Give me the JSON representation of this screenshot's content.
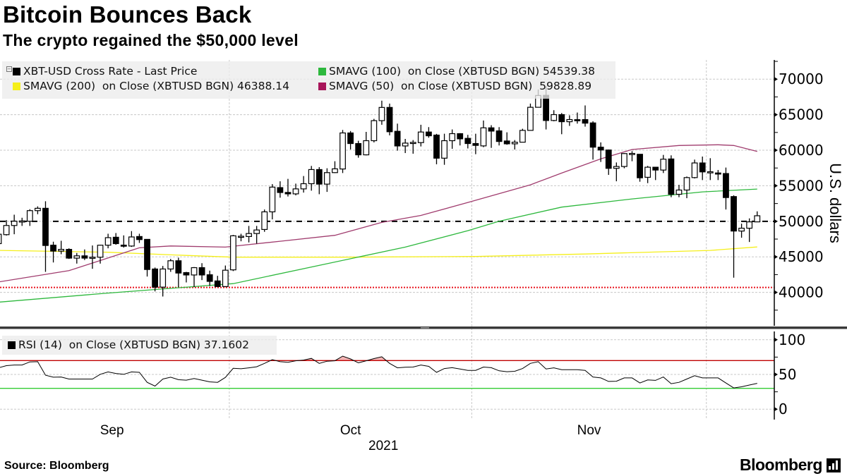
{
  "header": {
    "title": "Bitcoin Bounces Back",
    "subtitle": "The crypto regained the $50,000 level"
  },
  "legend": {
    "items": [
      {
        "label": "XBT-USD Cross Rate - Last Price",
        "color": "#000000"
      },
      {
        "label": "SMAVG (100)  on Close (XBTUSD BGN) 54539.38",
        "color": "#2db83d"
      },
      {
        "label": "SMAVG (200)  on Close (XBTUSD BGN) 46388.14",
        "color": "#f5ef1a"
      },
      {
        "label": "SMAVG (50)  on Close (XBTUSD BGN)  59828.89",
        "color": "#a8155a"
      }
    ]
  },
  "rsi_legend": {
    "label": "RSI (14)  on Close (XBTUSD BGN) 37.1602",
    "color": "#000000"
  },
  "footer": {
    "source": "Source: Bloomberg",
    "logo_text": "Bloomberg"
  },
  "chart_data": [
    {
      "type": "candlestick",
      "title": "",
      "xlabel": "2021",
      "ylabel": "U.S. dollars",
      "ylim": [
        35300,
        72700
      ],
      "y_ticks": [
        40000,
        45000,
        50000,
        55000,
        60000,
        65000,
        70000
      ],
      "x_ticks": [
        "Sep",
        "Oct",
        "Nov"
      ],
      "grid": true,
      "legend_position": "top-left",
      "candle_fields": [
        "date",
        "open",
        "high",
        "low",
        "close"
      ],
      "candles": [
        [
          "2021-09-01",
          46860,
          49020,
          46370,
          48180
        ],
        [
          "2021-09-02",
          48120,
          50170,
          48000,
          49410
        ],
        [
          "2021-09-03",
          49410,
          50930,
          48180,
          50010
        ],
        [
          "2021-09-04",
          50000,
          50500,
          49350,
          50050
        ],
        [
          "2021-09-05",
          50010,
          51700,
          49350,
          51500
        ],
        [
          "2021-09-06",
          51500,
          52100,
          51000,
          51830
        ],
        [
          "2021-09-07",
          51830,
          52820,
          42890,
          46600
        ],
        [
          "2021-09-08",
          46640,
          47130,
          44210,
          45810
        ],
        [
          "2021-09-09",
          45810,
          47260,
          45370,
          46050
        ],
        [
          "2021-09-10",
          46050,
          46200,
          44710,
          44820
        ],
        [
          "2021-09-11",
          44820,
          45540,
          44050,
          45140
        ],
        [
          "2021-09-12",
          45140,
          46040,
          44550,
          44820
        ],
        [
          "2021-09-13",
          44820,
          46600,
          43320,
          44950
        ],
        [
          "2021-09-14",
          44950,
          46700,
          44050,
          46640
        ],
        [
          "2021-09-15",
          46640,
          48250,
          46200,
          47700
        ],
        [
          "2021-09-16",
          47760,
          48350,
          46700,
          46860
        ],
        [
          "2021-09-17",
          46650,
          48020,
          46300,
          46500
        ],
        [
          "2021-09-18",
          46520,
          48620,
          46400,
          47800
        ],
        [
          "2021-09-19",
          47860,
          48250,
          46960,
          47430
        ],
        [
          "2021-09-20",
          47460,
          47500,
          42230,
          43220
        ],
        [
          "2021-09-21",
          43290,
          43500,
          40140,
          40740
        ],
        [
          "2021-09-22",
          40740,
          43720,
          39420,
          43290
        ],
        [
          "2021-09-23",
          43290,
          44710,
          42890,
          44450
        ],
        [
          "2021-09-24",
          44450,
          44880,
          40740,
          42720
        ],
        [
          "2021-09-25",
          42780,
          42890,
          41400,
          42450
        ],
        [
          "2021-09-26",
          42450,
          43560,
          40740,
          43480
        ],
        [
          "2021-09-27",
          43480,
          44110,
          41730,
          42450
        ],
        [
          "2021-09-28",
          42480,
          43060,
          40900,
          41550
        ],
        [
          "2021-09-29",
          41610,
          42330,
          40740,
          40820
        ],
        [
          "2021-09-30",
          40820,
          43780,
          40740,
          43120
        ],
        [
          "2021-10-01",
          43170,
          48080,
          43000,
          47960
        ],
        [
          "2021-10-02",
          47860,
          48250,
          47190,
          47900
        ],
        [
          "2021-10-03",
          47860,
          49350,
          47030,
          48280
        ],
        [
          "2021-10-04",
          48280,
          49350,
          46860,
          48780
        ],
        [
          "2021-10-05",
          48850,
          51660,
          48520,
          51330
        ],
        [
          "2021-10-06",
          51330,
          55230,
          50270,
          54810
        ],
        [
          "2021-10-07",
          54740,
          55630,
          53320,
          54050
        ],
        [
          "2021-10-08",
          54060,
          55970,
          53490,
          53860
        ],
        [
          "2021-10-09",
          53860,
          55300,
          53650,
          54560
        ],
        [
          "2021-10-10",
          54560,
          56370,
          54040,
          55290
        ],
        [
          "2021-10-11",
          55290,
          57790,
          54310,
          57280
        ],
        [
          "2021-10-12",
          57280,
          57620,
          53810,
          55230
        ],
        [
          "2021-10-13",
          55230,
          57460,
          54140,
          56850
        ],
        [
          "2021-10-14",
          56850,
          58450,
          56790,
          57380
        ],
        [
          "2021-10-15",
          57360,
          62850,
          56790,
          62430
        ],
        [
          "2021-10-16",
          62430,
          62700,
          60100,
          60940
        ],
        [
          "2021-10-17",
          60940,
          61330,
          58950,
          59350
        ],
        [
          "2021-10-18",
          59350,
          62580,
          59280,
          61340
        ],
        [
          "2021-10-19",
          61340,
          64410,
          61100,
          64160
        ],
        [
          "2021-10-20",
          64160,
          66970,
          63580,
          66020
        ],
        [
          "2021-10-21",
          66020,
          66560,
          62090,
          62600
        ],
        [
          "2021-10-22",
          62660,
          63740,
          59940,
          60600
        ],
        [
          "2021-10-23",
          60600,
          61590,
          59600,
          61000
        ],
        [
          "2021-10-24",
          61050,
          61430,
          59510,
          61100
        ],
        [
          "2021-10-25",
          61070,
          63580,
          60530,
          62560
        ],
        [
          "2021-10-26",
          62560,
          63250,
          61760,
          62030
        ],
        [
          "2021-10-27",
          62130,
          62300,
          58020,
          58880
        ],
        [
          "2021-10-28",
          58880,
          62320,
          57950,
          61340
        ],
        [
          "2021-10-29",
          61340,
          62920,
          60200,
          62330
        ],
        [
          "2021-10-30",
          62330,
          62400,
          60670,
          61600
        ],
        [
          "2021-10-31",
          61670,
          62160,
          60250,
          60940
        ],
        [
          "2021-11-01",
          60940,
          62320,
          59440,
          60680
        ],
        [
          "2021-11-02",
          60610,
          64180,
          60430,
          63150
        ],
        [
          "2021-11-03",
          63150,
          63520,
          60330,
          62690
        ],
        [
          "2021-11-04",
          62720,
          63250,
          60670,
          61230
        ],
        [
          "2021-11-05",
          61300,
          62520,
          60770,
          60900
        ],
        [
          "2021-11-06",
          60900,
          61430,
          60100,
          61130
        ],
        [
          "2021-11-07",
          61130,
          63020,
          61100,
          62790
        ],
        [
          "2021-11-08",
          62790,
          66560,
          62750,
          66040
        ],
        [
          "2021-11-09",
          66040,
          68540,
          66040,
          67700
        ],
        [
          "2021-11-10",
          67720,
          69040,
          62920,
          64180
        ],
        [
          "2021-11-11",
          64180,
          65630,
          64070,
          65010
        ],
        [
          "2021-11-12",
          65010,
          65230,
          62250,
          64010
        ],
        [
          "2021-11-13",
          64010,
          64910,
          63420,
          64310
        ],
        [
          "2021-11-14",
          64300,
          65300,
          63740,
          64280
        ],
        [
          "2021-11-15",
          64310,
          66300,
          63320,
          63810
        ],
        [
          "2021-11-16",
          63840,
          64070,
          58680,
          60430
        ],
        [
          "2021-11-17",
          60430,
          61100,
          58350,
          60030
        ],
        [
          "2021-11-18",
          60030,
          60100,
          56530,
          57450
        ],
        [
          "2021-11-19",
          57450,
          58280,
          55630,
          57710
        ],
        [
          "2021-11-20",
          57710,
          59600,
          57460,
          59530
        ],
        [
          "2021-11-21",
          59530,
          59870,
          58450,
          59550
        ],
        [
          "2021-11-22",
          59430,
          59440,
          55570,
          56120
        ],
        [
          "2021-11-23",
          56190,
          57790,
          55370,
          57610
        ],
        [
          "2021-11-24",
          57610,
          57620,
          55800,
          57210
        ],
        [
          "2021-11-25",
          57210,
          59340,
          56790,
          58740
        ],
        [
          "2021-11-26",
          58770,
          59280,
          53390,
          53800
        ],
        [
          "2021-11-27",
          53800,
          55130,
          53390,
          54400
        ],
        [
          "2021-11-28",
          54400,
          56300,
          53250,
          56150
        ],
        [
          "2021-11-29",
          56150,
          58680,
          56030,
          58210
        ],
        [
          "2021-11-30",
          58210,
          59110,
          55800,
          56950
        ],
        [
          "2021-12-01",
          56950,
          58880,
          55800,
          56970
        ],
        [
          "2021-12-02",
          56800,
          57220,
          55800,
          56780
        ],
        [
          "2021-12-03",
          56720,
          57560,
          51660,
          53340
        ],
        [
          "2021-12-04",
          53480,
          53650,
          42070,
          48630
        ],
        [
          "2021-12-05",
          48630,
          49670,
          47690,
          49030
        ],
        [
          "2021-12-06",
          49030,
          50410,
          47090,
          49920
        ],
        [
          "2021-12-07",
          49920,
          51400,
          49900,
          50780
        ]
      ],
      "series": [
        {
          "name": "SMAVG (200)",
          "color": "#f5ef1a",
          "points": [
            [
              "2021-09-01",
              45900
            ],
            [
              "2021-09-15",
              45650
            ],
            [
              "2021-09-25",
              45200
            ],
            [
              "2021-10-01",
              44950
            ],
            [
              "2021-10-15",
              44950
            ],
            [
              "2021-11-01",
              45050
            ],
            [
              "2021-11-15",
              45400
            ],
            [
              "2021-12-01",
              45900
            ],
            [
              "2021-12-07",
              46388.14
            ]
          ]
        },
        {
          "name": "SMAVG (100)",
          "color": "#2db83d",
          "points": [
            [
              "2021-09-01",
              38620
            ],
            [
              "2021-09-15",
              39900
            ],
            [
              "2021-10-01",
              41230
            ],
            [
              "2021-10-23",
              46370
            ],
            [
              "2021-10-31",
              48680
            ],
            [
              "2021-11-04",
              50010
            ],
            [
              "2021-11-12",
              52000
            ],
            [
              "2021-11-21",
              53150
            ],
            [
              "2021-11-30",
              54140
            ],
            [
              "2021-12-07",
              54539.38
            ]
          ]
        },
        {
          "name": "SMAVG (50)",
          "color": "#a03c6e",
          "points": [
            [
              "2021-09-01",
              41470
            ],
            [
              "2021-09-10",
              43060
            ],
            [
              "2021-09-19",
              46270
            ],
            [
              "2021-09-23",
              46530
            ],
            [
              "2021-09-30",
              46370
            ],
            [
              "2021-10-07",
              47190
            ],
            [
              "2021-10-14",
              48030
            ],
            [
              "2021-10-20",
              49840
            ],
            [
              "2021-10-25",
              50830
            ],
            [
              "2021-10-31",
              52650
            ],
            [
              "2021-11-08",
              55130
            ],
            [
              "2021-11-12",
              56790
            ],
            [
              "2021-11-17",
              58780
            ],
            [
              "2021-11-21",
              60100
            ],
            [
              "2021-11-27",
              60670
            ],
            [
              "2021-12-02",
              60770
            ],
            [
              "2021-12-04",
              60670
            ],
            [
              "2021-12-07",
              59828.89
            ]
          ]
        }
      ],
      "reference_lines": [
        {
          "value": 50000,
          "style": "dashed",
          "color": "#000000"
        },
        {
          "value": 40700,
          "style": "dotted",
          "color": "#e8141e"
        }
      ]
    },
    {
      "type": "line",
      "title": "",
      "ylim": [
        -15,
        115
      ],
      "y_ticks": [
        0,
        50,
        100
      ],
      "grid": true,
      "legend_position": "top-left",
      "series": [
        {
          "name": "RSI (14)",
          "color": "#000000",
          "values": [
            59.5,
            62.7,
            63.6,
            63.6,
            68.1,
            68.4,
            48.9,
            46.0,
            46.3,
            43.4,
            43.4,
            43.4,
            43.4,
            50.2,
            53.7,
            51.4,
            50.2,
            53.7,
            53.0,
            38.6,
            33.2,
            43.4,
            46.0,
            42.5,
            41.8,
            44.1,
            41.8,
            39.3,
            38.6,
            45.7,
            58.8,
            58.2,
            59.5,
            61.1,
            65.9,
            71.3,
            68.4,
            67.5,
            69.7,
            70.7,
            73.2,
            65.9,
            69.1,
            69.7,
            76.4,
            72.3,
            66.8,
            69.7,
            72.9,
            75.5,
            65.9,
            59.5,
            60.4,
            60.7,
            63.6,
            61.7,
            53.0,
            58.5,
            59.8,
            57.9,
            55.9,
            55.9,
            60.7,
            59.8,
            55.3,
            54.0,
            54.6,
            58.5,
            65.9,
            68.4,
            57.9,
            59.5,
            56.9,
            56.9,
            56.9,
            55.9,
            46.3,
            45.0,
            39.9,
            40.2,
            45.0,
            45.0,
            37.7,
            42.1,
            41.5,
            46.3,
            36.7,
            38.6,
            43.4,
            48.2,
            45.0,
            45.0,
            45.0,
            37.7,
            30.6,
            32.2,
            34.8,
            37.16
          ]
        }
      ],
      "reference_lines": [
        {
          "value": 70,
          "color": "#c00000"
        },
        {
          "value": 30,
          "color": "#33cc33"
        }
      ],
      "overbought_fill": "#f4b5b5"
    }
  ]
}
